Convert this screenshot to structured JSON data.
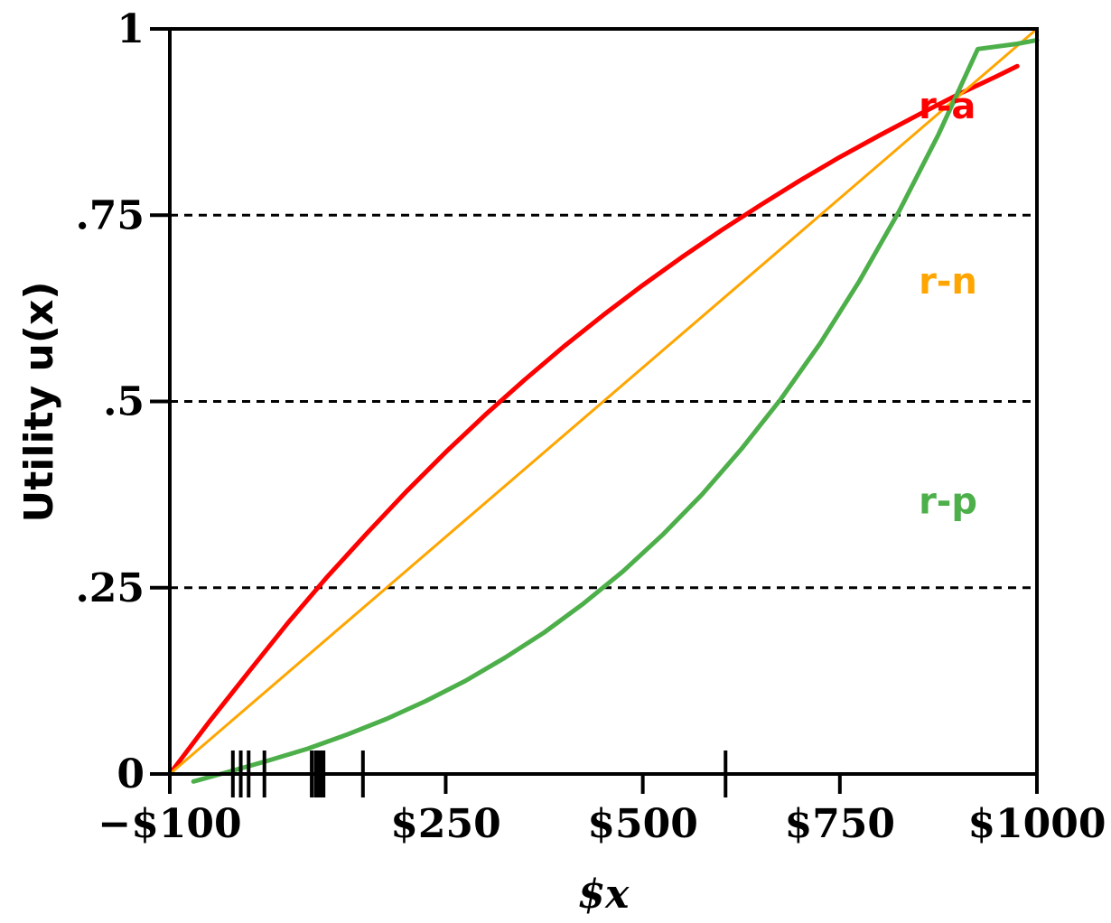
{
  "chart_data": {
    "type": "line",
    "xlabel": "$x",
    "ylabel": "Utility u(x)",
    "xlim": [
      -100,
      1000
    ],
    "ylim": [
      0,
      1
    ],
    "x_ticks": [
      {
        "value": -100,
        "label": "−$100"
      },
      {
        "value": 250,
        "label": "$250"
      },
      {
        "value": 500,
        "label": "$500"
      },
      {
        "value": 750,
        "label": "$750"
      },
      {
        "value": 1000,
        "label": "$1000"
      }
    ],
    "y_ticks": [
      {
        "value": 0,
        "label": "0"
      },
      {
        "value": 0.25,
        "label": ".25"
      },
      {
        "value": 0.5,
        "label": ".5"
      },
      {
        "value": 0.75,
        "label": ".75"
      },
      {
        "value": 1,
        "label": "1"
      }
    ],
    "reference_lines_y": [
      0.25,
      0.5,
      0.75
    ],
    "grid": false,
    "series": [
      {
        "name": "r-a",
        "color": "#ff0000",
        "x": [
          -100,
          -50,
          0,
          50,
          100,
          150,
          200,
          250,
          300,
          350,
          400,
          450,
          500,
          550,
          600,
          650,
          700,
          750,
          800,
          850,
          900,
          950,
          975
        ],
        "y": [
          0.0,
          0.07,
          0.137,
          0.203,
          0.265,
          0.323,
          0.379,
          0.432,
          0.482,
          0.529,
          0.574,
          0.616,
          0.656,
          0.694,
          0.73,
          0.764,
          0.797,
          0.828,
          0.857,
          0.885,
          0.912,
          0.937,
          0.95
        ]
      },
      {
        "name": "r-n",
        "color": "#ffa500",
        "x": [
          -100,
          1000
        ],
        "y": [
          0,
          1
        ]
      },
      {
        "name": "r-p",
        "color": "#4daf4a",
        "x": [
          -70,
          -25,
          25,
          75,
          125,
          175,
          225,
          275,
          325,
          375,
          425,
          475,
          525,
          575,
          625,
          675,
          725,
          775,
          825,
          875,
          925,
          975,
          1000
        ],
        "y": [
          -0.01,
          0.003,
          0.018,
          0.034,
          0.053,
          0.074,
          0.098,
          0.125,
          0.156,
          0.19,
          0.229,
          0.272,
          0.321,
          0.375,
          0.436,
          0.503,
          0.578,
          0.662,
          0.755,
          0.858,
          0.973,
          0.98,
          0.985
        ]
      }
    ],
    "rug_ticks_x": [
      -20,
      -10,
      0,
      20,
      80,
      85,
      88,
      90,
      92,
      95,
      145,
      605
    ]
  }
}
